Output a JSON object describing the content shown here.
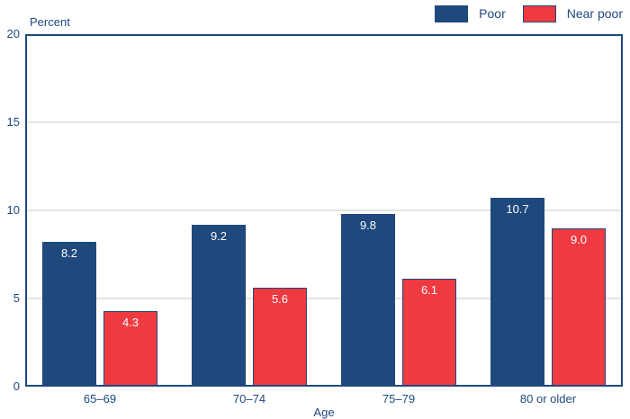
{
  "chart_data": {
    "type": "bar",
    "title": "",
    "ylabel": "Percent",
    "xlabel": "Age",
    "categories": [
      "65–69",
      "70–74",
      "75–79",
      "80 or older"
    ],
    "series": [
      {
        "name": "Poor",
        "color": "#1F497D",
        "values": [
          8.2,
          9.2,
          9.8,
          10.7
        ]
      },
      {
        "name": "Near poor",
        "color": "#EF3A41",
        "values": [
          4.3,
          5.6,
          6.1,
          9.0
        ]
      }
    ],
    "ylim": [
      0,
      20
    ],
    "yticks": [
      0,
      5,
      10,
      15,
      20
    ],
    "grid": "horizontal",
    "gridline_color": "#E3E3E3",
    "legend_position": "top-right",
    "value_labels": true,
    "value_label_color": "#ffffff",
    "axis_color": "#1F497D",
    "text_color": "#1F497D"
  }
}
